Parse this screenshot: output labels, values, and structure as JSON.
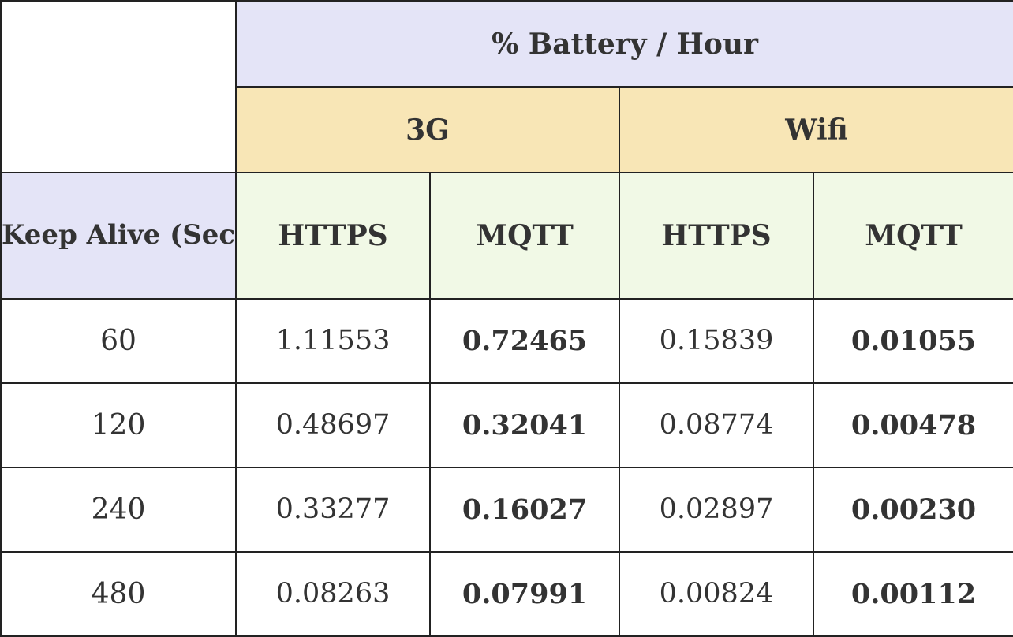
{
  "table": {
    "main_header": "% Battery / Hour",
    "network_headers": [
      "3G",
      "Wifi"
    ],
    "row_header": "Keep Alive (Seconds)",
    "protocol_headers": [
      "HTTPS",
      "MQTT",
      "HTTPS",
      "MQTT"
    ],
    "rows": [
      {
        "keep_alive": "60",
        "g3_https": "1.11553",
        "g3_mqtt": "0.72465",
        "wifi_https": "0.15839",
        "wifi_mqtt": "0.01055"
      },
      {
        "keep_alive": "120",
        "g3_https": "0.48697",
        "g3_mqtt": "0.32041",
        "wifi_https": "0.08774",
        "wifi_mqtt": "0.00478"
      },
      {
        "keep_alive": "240",
        "g3_https": "0.33277",
        "g3_mqtt": "0.16027",
        "wifi_https": "0.02897",
        "wifi_mqtt": "0.00230"
      },
      {
        "keep_alive": "480",
        "g3_https": "0.08263",
        "g3_mqtt": "0.07991",
        "wifi_https": "0.00824",
        "wifi_mqtt": "0.00112"
      }
    ]
  },
  "colors": {
    "header_lavender": "#e4e4f7",
    "header_yellow": "#f8e6b6",
    "header_green": "#f1f9e6",
    "border": "#222222",
    "text": "#333333"
  }
}
